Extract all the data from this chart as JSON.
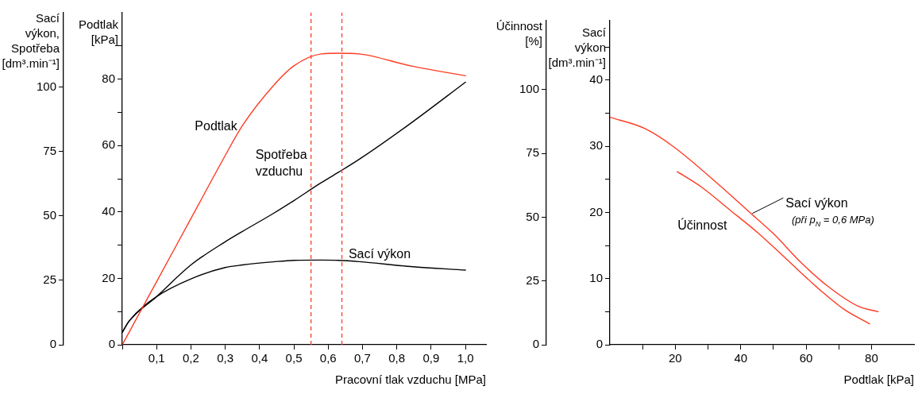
{
  "chart_data": [
    {
      "type": "line",
      "xlabel": "Pracovní tlak vzduchu [MPa]",
      "ylabel": "Podtlak [kPa]",
      "y2label": "Sací výkon, Spotřeba [dm³.min⁻¹]",
      "x": [
        0,
        0.02,
        0.1,
        0.2,
        0.3,
        0.35,
        0.44,
        0.5,
        0.58,
        0.63,
        0.69,
        0.84,
        1.0
      ],
      "xlim": [
        0,
        1.06
      ],
      "xticks": [
        {
          "value": 0,
          "label": null
        },
        {
          "value": 0.1,
          "label": "0,1"
        },
        {
          "value": 0.2,
          "label": "0,2"
        },
        {
          "value": 0.3,
          "label": "0,3"
        },
        {
          "value": 0.4,
          "label": "0,4"
        },
        {
          "value": 0.5,
          "label": "0,5"
        },
        {
          "value": 0.6,
          "label": "0,6"
        },
        {
          "value": 0.7,
          "label": "0,7"
        },
        {
          "value": 0.8,
          "label": "0,8"
        },
        {
          "value": 0.9,
          "label": "0,9"
        },
        {
          "value": 1.0,
          "label": "1,0"
        }
      ],
      "ylim": [
        0,
        100
      ],
      "yticks": [
        0,
        {
          "value": 10,
          "label": null
        },
        20,
        {
          "value": 30,
          "label": null
        },
        40,
        {
          "value": 50,
          "label": null
        },
        60,
        {
          "value": 70,
          "label": null
        },
        80,
        {
          "value": 90,
          "label": null
        }
      ],
      "y2lim": [
        0,
        129
      ],
      "y2ticks": [
        0,
        25,
        50,
        75,
        100
      ],
      "series": [
        {
          "name": "Podtlak",
          "color": "#ff3b22",
          "values": [
            0,
            3.8,
            19,
            38,
            57,
            66,
            78,
            84,
            87.6,
            87.8,
            87.6,
            84,
            81
          ]
        },
        {
          "name": "Spotřeba vzduchu",
          "color": "#000000",
          "axis": "y2",
          "values": [
            4.8,
            9.2,
            18.7,
            31,
            40,
            44,
            51,
            56,
            63,
            67,
            72,
            86,
            102
          ]
        },
        {
          "name": "Sací výkon",
          "color": "#000000",
          "axis": "y2",
          "values": [
            4.8,
            9.2,
            18.7,
            25.6,
            30,
            31,
            32.2,
            32.8,
            32.9,
            32.8,
            32.3,
            30.4,
            29
          ]
        }
      ],
      "ref_lines": [
        {
          "axis": "x",
          "value": 0.55,
          "color": "#ff3b22",
          "line_style": "dashed"
        },
        {
          "axis": "x",
          "value": 0.64,
          "color": "#ff3b22",
          "line_style": "dashed"
        }
      ],
      "grid": false,
      "legend": false,
      "marker": "none",
      "line_style": "solid"
    },
    {
      "type": "line",
      "xlabel": "Podtlak [kPa]",
      "ylabel": "Sací výkon [dm³.min⁻¹]",
      "y2label": "Účinnost [%]",
      "xlim": [
        0,
        93
      ],
      "xticks": [
        {
          "value": 10,
          "label": null
        },
        20,
        {
          "value": 30,
          "label": null
        },
        40,
        {
          "value": 50,
          "label": null
        },
        60,
        {
          "value": 70,
          "label": null
        },
        80
      ],
      "ylim": [
        0,
        49
      ],
      "yticks": [
        0,
        {
          "value": 5,
          "label": null
        },
        10,
        {
          "value": 15,
          "label": null
        },
        20,
        {
          "value": 25,
          "label": null
        },
        30,
        {
          "value": 35,
          "label": null
        },
        40,
        {
          "value": 45,
          "label": null
        }
      ],
      "y2lim": [
        0,
        127
      ],
      "y2ticks": [
        0,
        25,
        50,
        75,
        100
      ],
      "series": [
        {
          "name": "Sací výkon",
          "color": "#ff3b22",
          "x": [
            0,
            10.6,
            19.3,
            34,
            43,
            50,
            58.5,
            67,
            76,
            82
          ],
          "values": [
            34.4,
            32.7,
            30,
            23.9,
            19.9,
            16.8,
            12.4,
            8.7,
            5.8,
            5
          ]
        },
        {
          "name": "Účinnost",
          "color": "#ff3b22",
          "axis": "y2",
          "x": [
            20.6,
            28,
            36.8,
            45.5,
            54.2,
            62.9,
            71.6,
            79.4
          ],
          "values": [
            67.8,
            61.8,
            52.7,
            43.6,
            33.3,
            23,
            13.9,
            8.2
          ]
        }
      ],
      "annotations": [
        "(při p$_{N}$ = 0,6 MPa)"
      ],
      "grid": false,
      "legend": false,
      "marker": "none",
      "line_style": "solid"
    }
  ]
}
